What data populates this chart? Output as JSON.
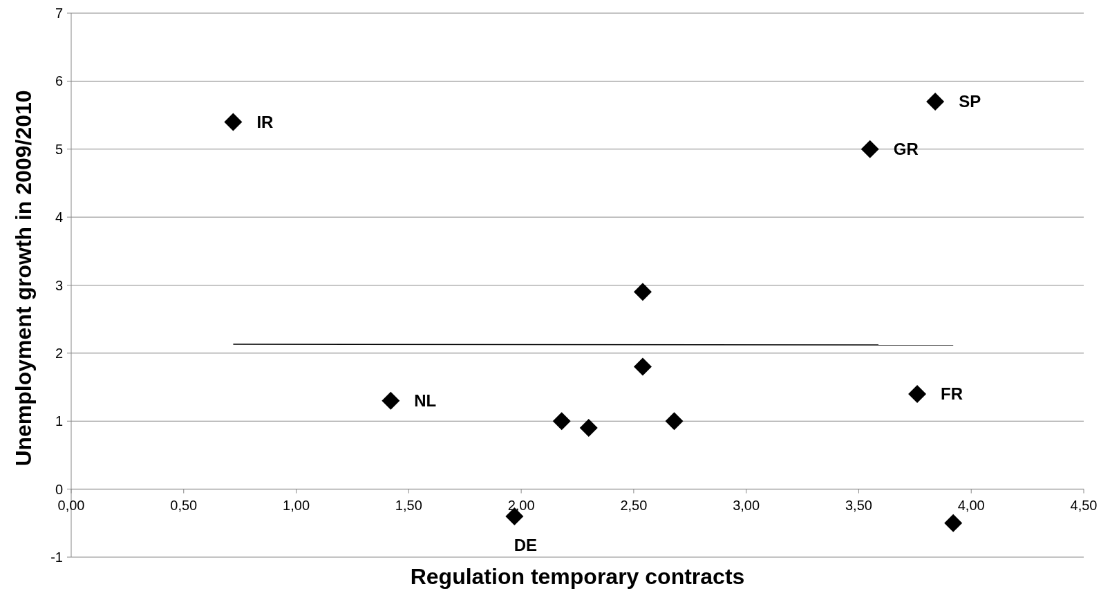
{
  "chart_data": {
    "type": "scatter",
    "xlabel": "Regulation temporary contracts",
    "ylabel": "Unemployment growth in 2009/2010",
    "series": [
      {
        "color": "#000000",
        "marker": "diamond",
        "x": [
          0.72,
          3.84,
          3.55,
          2.54,
          2.54,
          1.42,
          3.76,
          2.18,
          2.3,
          2.68,
          1.97,
          3.92
        ],
        "values": [
          5.4,
          5.7,
          5.0,
          2.9,
          1.8,
          1.3,
          1.4,
          1.0,
          0.9,
          1.0,
          -0.4,
          -0.5
        ]
      },
      {
        "type": "line",
        "marker": "none",
        "color": "#000000",
        "x": [
          0.72,
          3.92
        ],
        "values": [
          2.13,
          2.12
        ]
      }
    ],
    "annotations": [
      {
        "text": "IR",
        "x": 0.72,
        "y": 5.4
      },
      {
        "text": "SP",
        "x": 3.84,
        "y": 5.7
      },
      {
        "text": "GR",
        "x": 3.55,
        "y": 5.0
      },
      {
        "text": "NL",
        "x": 1.42,
        "y": 1.3
      },
      {
        "text": "FR",
        "x": 3.76,
        "y": 1.4
      },
      {
        "text": "DE",
        "x": 1.97,
        "y": -0.4
      }
    ],
    "xlim": [
      0,
      4.5
    ],
    "xticks": [
      {
        "value": 0,
        "label": "0,00"
      },
      {
        "value": 0.5,
        "label": "0,50"
      },
      {
        "value": 1,
        "label": "1,00"
      },
      {
        "value": 1.5,
        "label": "1,50"
      },
      {
        "value": 2,
        "label": "2,00"
      },
      {
        "value": 2.5,
        "label": "2,50"
      },
      {
        "value": 3,
        "label": "3,00"
      },
      {
        "value": 3.5,
        "label": "3,50"
      },
      {
        "value": 4,
        "label": "4,00"
      },
      {
        "value": 4.5,
        "label": "4,50"
      }
    ],
    "ylim": [
      -1,
      7
    ],
    "yticks": [
      -1,
      0,
      1,
      2,
      3,
      4,
      5,
      6,
      7
    ],
    "grid": "y"
  }
}
